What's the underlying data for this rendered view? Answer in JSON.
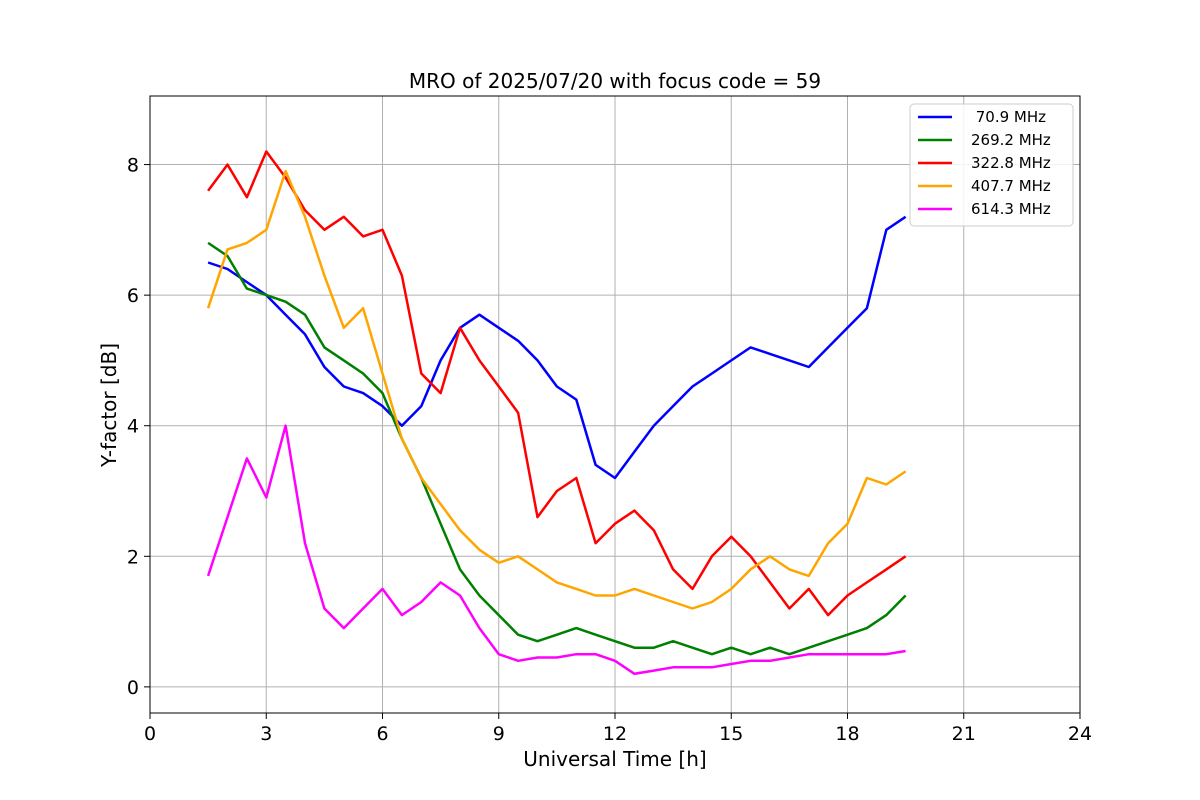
{
  "chart_data": {
    "type": "line",
    "title": "MRO of 2025/07/20 with focus code = 59",
    "xlabel": "Universal Time [h]",
    "ylabel": "Y-factor [dB]",
    "xlim": [
      0,
      24
    ],
    "ylim": [
      -0.4,
      9.05
    ],
    "xticks": [
      0,
      3,
      6,
      9,
      12,
      15,
      18,
      21,
      24
    ],
    "yticks": [
      0,
      2,
      4,
      6,
      8
    ],
    "grid": true,
    "legend_position": "top-right",
    "series": [
      {
        "name": " 70.9 MHz",
        "color": "#0000ff",
        "x": [
          1.5,
          2.0,
          2.5,
          3.0,
          3.5,
          4.0,
          4.5,
          5.0,
          5.5,
          6.0,
          6.5,
          7.0,
          7.5,
          8.0,
          8.5,
          9.0,
          9.5,
          10.0,
          10.5,
          11.0,
          11.5,
          12.0,
          12.5,
          13.0,
          13.5,
          14.0,
          14.5,
          15.0,
          15.5,
          16.0,
          16.5,
          17.0,
          17.5,
          18.0,
          18.5,
          19.0,
          19.5
        ],
        "values": [
          6.5,
          6.4,
          6.2,
          6.0,
          5.7,
          5.4,
          4.9,
          4.6,
          4.5,
          4.3,
          4.0,
          4.3,
          5.0,
          5.5,
          5.7,
          5.5,
          5.3,
          5.0,
          4.6,
          4.4,
          3.4,
          3.2,
          3.6,
          4.0,
          4.3,
          4.6,
          4.8,
          5.0,
          5.2,
          5.1,
          5.0,
          4.9,
          5.2,
          5.5,
          5.8,
          7.0,
          7.2
        ]
      },
      {
        "name": "269.2 MHz",
        "color": "#008000",
        "x": [
          1.5,
          2.0,
          2.5,
          3.0,
          3.5,
          4.0,
          4.5,
          5.0,
          5.5,
          6.0,
          6.5,
          7.0,
          7.5,
          8.0,
          8.5,
          9.0,
          9.5,
          10.0,
          10.5,
          11.0,
          11.5,
          12.0,
          12.5,
          13.0,
          13.5,
          14.0,
          14.5,
          15.0,
          15.5,
          16.0,
          16.5,
          17.0,
          17.5,
          18.0,
          18.5,
          19.0,
          19.5
        ],
        "values": [
          6.8,
          6.6,
          6.1,
          6.0,
          5.9,
          5.7,
          5.2,
          5.0,
          4.8,
          4.5,
          3.8,
          3.2,
          2.5,
          1.8,
          1.4,
          1.1,
          0.8,
          0.7,
          0.8,
          0.9,
          0.8,
          0.7,
          0.6,
          0.6,
          0.7,
          0.6,
          0.5,
          0.6,
          0.5,
          0.6,
          0.5,
          0.6,
          0.7,
          0.8,
          0.9,
          1.1,
          1.4
        ]
      },
      {
        "name": "322.8 MHz",
        "color": "#ff0000",
        "x": [
          1.5,
          2.0,
          2.5,
          3.0,
          3.5,
          4.0,
          4.5,
          5.0,
          5.5,
          6.0,
          6.5,
          7.0,
          7.5,
          8.0,
          8.5,
          9.0,
          9.5,
          10.0,
          10.5,
          11.0,
          11.5,
          12.0,
          12.5,
          13.0,
          13.5,
          14.0,
          14.5,
          15.0,
          15.5,
          16.0,
          16.5,
          17.0,
          17.5,
          18.0,
          18.5,
          19.0,
          19.5
        ],
        "values": [
          7.6,
          8.0,
          7.5,
          8.2,
          7.8,
          7.3,
          7.0,
          7.2,
          6.9,
          7.0,
          6.3,
          4.8,
          4.5,
          5.5,
          5.0,
          4.6,
          4.2,
          2.6,
          3.0,
          3.2,
          2.2,
          2.5,
          2.7,
          2.4,
          1.8,
          1.5,
          2.0,
          2.3,
          2.0,
          1.6,
          1.2,
          1.5,
          1.1,
          1.4,
          1.6,
          1.8,
          2.0
        ]
      },
      {
        "name": "407.7 MHz",
        "color": "#ffa500",
        "x": [
          1.5,
          2.0,
          2.5,
          3.0,
          3.5,
          4.0,
          4.5,
          5.0,
          5.5,
          6.0,
          6.5,
          7.0,
          7.5,
          8.0,
          8.5,
          9.0,
          9.5,
          10.0,
          10.5,
          11.0,
          11.5,
          12.0,
          12.5,
          13.0,
          13.5,
          14.0,
          14.5,
          15.0,
          15.5,
          16.0,
          16.5,
          17.0,
          17.5,
          18.0,
          18.5,
          19.0,
          19.5
        ],
        "values": [
          5.8,
          6.7,
          6.8,
          7.0,
          7.9,
          7.2,
          6.3,
          5.5,
          5.8,
          4.8,
          3.8,
          3.2,
          2.8,
          2.4,
          2.1,
          1.9,
          2.0,
          1.8,
          1.6,
          1.5,
          1.4,
          1.4,
          1.5,
          1.4,
          1.3,
          1.2,
          1.3,
          1.5,
          1.8,
          2.0,
          1.8,
          1.7,
          2.2,
          2.5,
          3.2,
          3.1,
          3.3
        ]
      },
      {
        "name": "614.3 MHz",
        "color": "#ff00ff",
        "x": [
          1.5,
          2.0,
          2.5,
          3.0,
          3.5,
          4.0,
          4.5,
          5.0,
          5.5,
          6.0,
          6.5,
          7.0,
          7.5,
          8.0,
          8.5,
          9.0,
          9.5,
          10.0,
          10.5,
          11.0,
          11.5,
          12.0,
          12.5,
          13.0,
          13.5,
          14.0,
          14.5,
          15.0,
          15.5,
          16.0,
          16.5,
          17.0,
          17.5,
          18.0,
          18.5,
          19.0,
          19.5
        ],
        "values": [
          1.7,
          2.6,
          3.5,
          2.9,
          4.0,
          2.2,
          1.2,
          0.9,
          1.2,
          1.5,
          1.1,
          1.3,
          1.6,
          1.4,
          0.9,
          0.5,
          0.4,
          0.45,
          0.45,
          0.5,
          0.5,
          0.4,
          0.2,
          0.25,
          0.3,
          0.3,
          0.3,
          0.35,
          0.4,
          0.4,
          0.45,
          0.5,
          0.5,
          0.5,
          0.5,
          0.5,
          0.55
        ]
      }
    ]
  }
}
